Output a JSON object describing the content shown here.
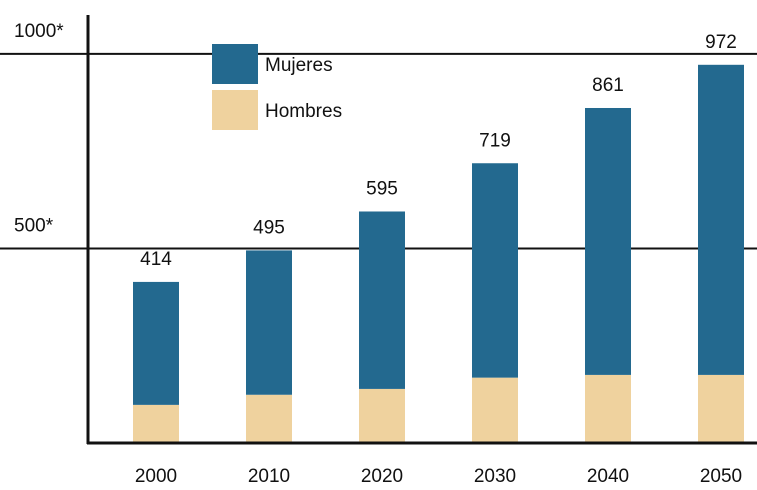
{
  "chart_data": {
    "type": "stacked_bar",
    "categories": [
      "2000",
      "2010",
      "2020",
      "2030",
      "2040",
      "2050"
    ],
    "series": [
      {
        "name": "Hombres",
        "color": "#efd29e",
        "values": [
          98,
          124,
          139,
          168,
          175,
          175
        ]
      },
      {
        "name": "Mujeres",
        "color": "#23698f",
        "values": [
          316,
          371,
          456,
          551,
          686,
          797
        ]
      }
    ],
    "totals": [
      414,
      495,
      595,
      719,
      861,
      972
    ],
    "ylim": [
      0,
      1100
    ],
    "yticks": [
      {
        "value": 500,
        "label": "500*"
      },
      {
        "value": 1000,
        "label": "1000*"
      }
    ],
    "grid": true
  }
}
